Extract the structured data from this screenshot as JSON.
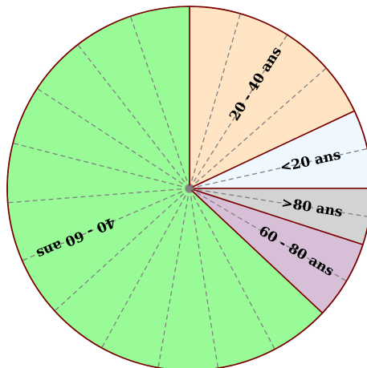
{
  "chart_data": {
    "type": "pie",
    "start_angle_deg": 90,
    "direction": "clockwise",
    "slices": [
      {
        "label": "20 - 40 ans",
        "value": 1.8,
        "color": "#ffe4c4"
      },
      {
        "label": "<20 ans",
        "value": 0.7,
        "color": "#f0f8ff"
      },
      {
        "label": ">80 ans",
        "value": 0.5,
        "color": "#d3d3d3"
      },
      {
        "label": "60 - 80 ans",
        "value": 0.7,
        "color": "#d8bfd8"
      },
      {
        "label": "40 - 60 ans",
        "value": 6.3,
        "color": "#98fb98"
      }
    ],
    "spokes_per_unit": 1.6667,
    "colors": {
      "edge": "#7a0000",
      "spoke": "#808080"
    }
  }
}
